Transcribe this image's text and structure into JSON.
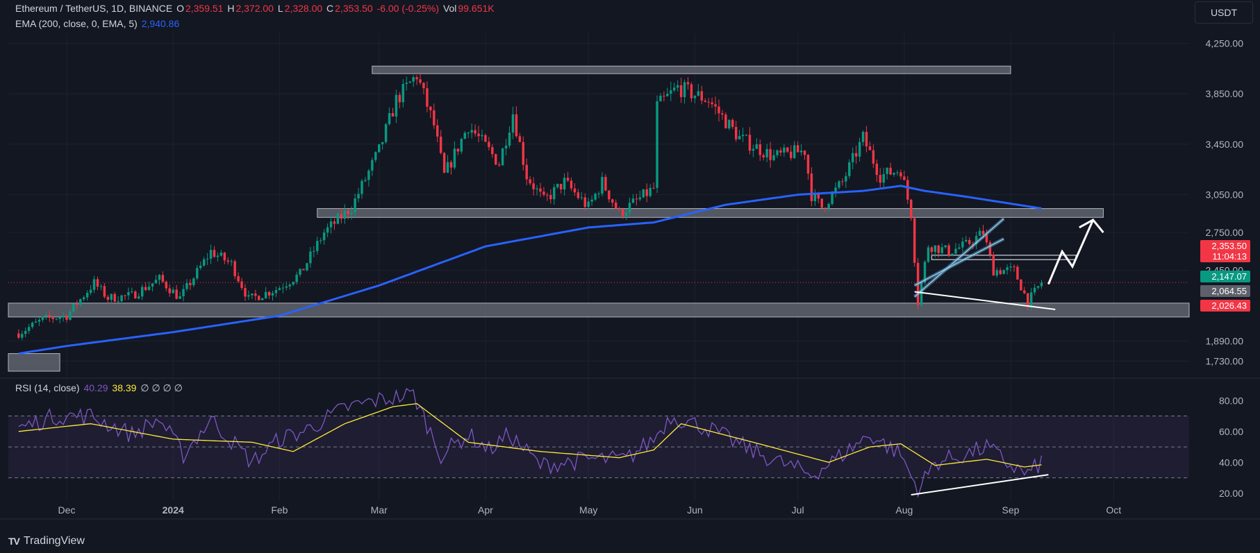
{
  "header": {
    "symbol": "Ethereum / TetherUS, 1D, BINANCE",
    "o_label": "O",
    "o_value": "2,359.51",
    "h_label": "H",
    "h_value": "2,372.00",
    "l_label": "L",
    "l_value": "2,328.00",
    "c_label": "C",
    "c_value": "2,353.50",
    "change": "-6.00 (-0.25%)",
    "vol_label": "Vol",
    "vol_value": "99.651K",
    "ema_label": "EMA (200, close, 0, EMA, 5)",
    "ema_value": "2,940.86",
    "currency": "USDT"
  },
  "rsi_legend": {
    "label": "RSI (14, close)",
    "rsi_value": "40.29",
    "ma_value": "38.39",
    "extra": "∅ ∅ ∅ ∅"
  },
  "price_tags": {
    "last_price": "2,353.50",
    "countdown": "11:04:13",
    "tag_green": "2,147.07",
    "tag_gray": "2,064.55",
    "tag_red": "2,026.43"
  },
  "brand": {
    "name": "TradingView",
    "logo": "TV"
  },
  "colors": {
    "background": "#131722",
    "up": "#089981",
    "down": "#f23645",
    "ema": "#2962ff",
    "rsi": "#7e57c2",
    "rsi_ma": "#ffeb3b",
    "zone": "#787b86"
  },
  "chart_data": {
    "type": "candlestick",
    "price_axis_ticks": [
      "4,250.00",
      "3,850.00",
      "3,450.00",
      "3,050.00",
      "2,750.00",
      "2,450.00",
      "1,890.00",
      "1,730.00"
    ],
    "rsi_axis_ticks": [
      "80.00",
      "60.00",
      "40.00",
      "20.00"
    ],
    "time_axis_labels": [
      "Dec",
      "2024",
      "Feb",
      "Mar",
      "Apr",
      "May",
      "Jun",
      "Jul",
      "Aug",
      "Sep",
      "Oct"
    ],
    "ylim": [
      1650,
      4330
    ],
    "rsi_ylim": [
      15,
      90
    ],
    "price_anchors": [
      [
        "2023-11-17",
        1950
      ],
      [
        "2023-11-24",
        2060
      ],
      [
        "2023-12-01",
        2090
      ],
      [
        "2023-12-09",
        2350
      ],
      [
        "2023-12-13",
        2230
      ],
      [
        "2023-12-20",
        2250
      ],
      [
        "2023-12-28",
        2380
      ],
      [
        "2024-01-03",
        2230
      ],
      [
        "2024-01-12",
        2600
      ],
      [
        "2024-01-18",
        2500
      ],
      [
        "2024-01-23",
        2220
      ],
      [
        "2024-01-31",
        2300
      ],
      [
        "2024-02-07",
        2420
      ],
      [
        "2024-02-14",
        2750
      ],
      [
        "2024-02-22",
        2950
      ],
      [
        "2024-03-01",
        3400
      ],
      [
        "2024-03-06",
        3800
      ],
      [
        "2024-03-12",
        4000
      ],
      [
        "2024-03-17",
        3600
      ],
      [
        "2024-03-20",
        3200
      ],
      [
        "2024-03-27",
        3600
      ],
      [
        "2024-04-05",
        3300
      ],
      [
        "2024-04-09",
        3700
      ],
      [
        "2024-04-13",
        3200
      ],
      [
        "2024-04-18",
        3000
      ],
      [
        "2024-04-24",
        3150
      ],
      [
        "2024-05-01",
        2950
      ],
      [
        "2024-05-05",
        3150
      ],
      [
        "2024-05-10",
        2900
      ],
      [
        "2024-05-20",
        3100
      ],
      [
        "2024-05-21",
        3750
      ],
      [
        "2024-05-27",
        3900
      ],
      [
        "2024-06-05",
        3800
      ],
      [
        "2024-06-14",
        3500
      ],
      [
        "2024-06-24",
        3350
      ],
      [
        "2024-07-03",
        3400
      ],
      [
        "2024-07-05",
        3050
      ],
      [
        "2024-07-08",
        2950
      ],
      [
        "2024-07-14",
        3150
      ],
      [
        "2024-07-20",
        3500
      ],
      [
        "2024-07-25",
        3200
      ],
      [
        "2024-07-31",
        3250
      ],
      [
        "2024-08-03",
        2900
      ],
      [
        "2024-08-05",
        2200
      ],
      [
        "2024-08-08",
        2650
      ],
      [
        "2024-08-14",
        2600
      ],
      [
        "2024-08-19",
        2650
      ],
      [
        "2024-08-24",
        2750
      ],
      [
        "2024-08-27",
        2450
      ],
      [
        "2024-09-02",
        2450
      ],
      [
        "2024-09-06",
        2200
      ],
      [
        "2024-09-10",
        2353.5
      ]
    ],
    "ema_anchors": [
      [
        "2023-11-17",
        1790
      ],
      [
        "2023-12-01",
        1850
      ],
      [
        "2024-01-01",
        1960
      ],
      [
        "2024-02-01",
        2090
      ],
      [
        "2024-03-01",
        2330
      ],
      [
        "2024-04-01",
        2640
      ],
      [
        "2024-05-01",
        2790
      ],
      [
        "2024-05-20",
        2830
      ],
      [
        "2024-06-10",
        2970
      ],
      [
        "2024-07-01",
        3050
      ],
      [
        "2024-07-20",
        3080
      ],
      [
        "2024-07-31",
        3120
      ],
      [
        "2024-08-07",
        3080
      ],
      [
        "2024-08-20",
        3030
      ],
      [
        "2024-09-10",
        2940.86
      ]
    ],
    "rsi_anchors": [
      [
        "2023-11-17",
        62
      ],
      [
        "2023-11-28",
        70
      ],
      [
        "2023-12-08",
        70
      ],
      [
        "2023-12-20",
        58
      ],
      [
        "2023-12-28",
        68
      ],
      [
        "2024-01-04",
        45
      ],
      [
        "2024-01-12",
        68
      ],
      [
        "2024-01-24",
        40
      ],
      [
        "2024-02-01",
        55
      ],
      [
        "2024-02-08",
        60
      ],
      [
        "2024-02-20",
        75
      ],
      [
        "2024-02-29",
        80
      ],
      [
        "2024-03-11",
        84
      ],
      [
        "2024-03-19",
        45
      ],
      [
        "2024-03-27",
        58
      ],
      [
        "2024-04-02",
        48
      ],
      [
        "2024-04-08",
        58
      ],
      [
        "2024-04-17",
        38
      ],
      [
        "2024-05-01",
        42
      ],
      [
        "2024-05-12",
        42
      ],
      [
        "2024-05-20",
        55
      ],
      [
        "2024-05-25",
        70
      ],
      [
        "2024-06-05",
        62
      ],
      [
        "2024-06-18",
        47
      ],
      [
        "2024-07-05",
        32
      ],
      [
        "2024-07-12",
        42
      ],
      [
        "2024-07-22",
        58
      ],
      [
        "2024-07-31",
        45
      ],
      [
        "2024-08-05",
        22
      ],
      [
        "2024-08-10",
        40
      ],
      [
        "2024-08-19",
        45
      ],
      [
        "2024-08-25",
        50
      ],
      [
        "2024-09-01",
        38
      ],
      [
        "2024-09-06",
        32
      ],
      [
        "2024-09-10",
        40.29
      ]
    ],
    "rsi_ma_anchors": [
      [
        "2023-11-17",
        60
      ],
      [
        "2023-12-08",
        65
      ],
      [
        "2024-01-01",
        55
      ],
      [
        "2024-01-24",
        53
      ],
      [
        "2024-02-05",
        47
      ],
      [
        "2024-02-20",
        65
      ],
      [
        "2024-03-05",
        76
      ],
      [
        "2024-03-12",
        78
      ],
      [
        "2024-03-27",
        53
      ],
      [
        "2024-04-17",
        47
      ],
      [
        "2024-05-10",
        43
      ],
      [
        "2024-05-20",
        48
      ],
      [
        "2024-05-28",
        65
      ],
      [
        "2024-06-18",
        53
      ],
      [
        "2024-07-10",
        40
      ],
      [
        "2024-07-22",
        50
      ],
      [
        "2024-07-31",
        52
      ],
      [
        "2024-08-10",
        38
      ],
      [
        "2024-08-25",
        42
      ],
      [
        "2024-09-05",
        37
      ],
      [
        "2024-09-10",
        38.39
      ]
    ],
    "annotations": {
      "support_zones": [
        [
          2080,
          2190
        ],
        [
          1650,
          1790
        ]
      ],
      "resistance_zones": [
        [
          4010,
          4070
        ],
        [
          2870,
          2940
        ]
      ],
      "small_box": [
        2535,
        2570
      ],
      "rising_wedge": [
        [
          "2024-08-04",
          2240,
          "2024-08-30",
          2860
        ],
        [
          "2024-08-04",
          2330,
          "2024-08-30",
          2700
        ]
      ],
      "falling_trendline": [
        "2024-08-04",
        2280,
        "2024-09-14",
        2140
      ],
      "rsi_trendline": [
        "2024-08-03",
        19,
        "2024-09-12",
        32
      ],
      "projection_arrow": [
        [
          "2024-09-12",
          2340
        ],
        [
          "2024-09-16",
          2600
        ],
        [
          "2024-09-19",
          2480
        ],
        [
          "2024-09-25",
          2850
        ],
        [
          "2024-09-28",
          2750
        ]
      ]
    }
  }
}
